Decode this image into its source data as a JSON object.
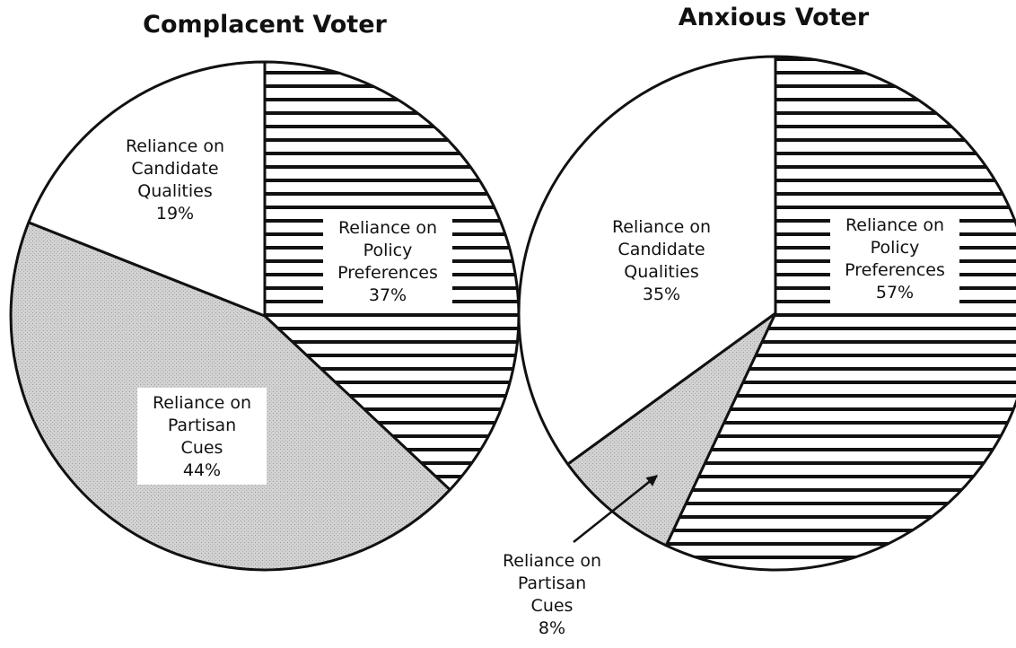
{
  "chart_data": [
    {
      "type": "pie",
      "title": "Complacent Voter",
      "slices": [
        {
          "name": "Policy Preferences",
          "value": 37,
          "lines": [
            "Reliance on",
            "Policy",
            "Preferences",
            "37%"
          ],
          "fill": "hatch"
        },
        {
          "name": "Partisan Cues",
          "value": 44,
          "lines": [
            "Reliance on",
            "Partisan",
            "Cues",
            "44%"
          ],
          "fill": "stipple"
        },
        {
          "name": "Candidate Qualities",
          "value": 19,
          "lines": [
            "Reliance on",
            "Candidate",
            "Qualities",
            "19%"
          ],
          "fill": "white"
        }
      ]
    },
    {
      "type": "pie",
      "title": "Anxious Voter",
      "slices": [
        {
          "name": "Policy Preferences",
          "value": 57,
          "lines": [
            "Reliance on",
            "Policy",
            "Preferences",
            "57%"
          ],
          "fill": "hatch"
        },
        {
          "name": "Partisan Cues",
          "value": 8,
          "lines": [
            "Reliance on",
            "Partisan",
            "Cues",
            "8%"
          ],
          "fill": "stipple",
          "callout": true
        },
        {
          "name": "Candidate Qualities",
          "value": 35,
          "lines": [
            "Reliance on",
            "Candidate",
            "Qualities",
            "35%"
          ],
          "fill": "white"
        }
      ]
    }
  ],
  "colors": {
    "outline": "#111111",
    "stipple": "#d2d2d2",
    "white": "#ffffff",
    "hatch_line": "#111111"
  }
}
